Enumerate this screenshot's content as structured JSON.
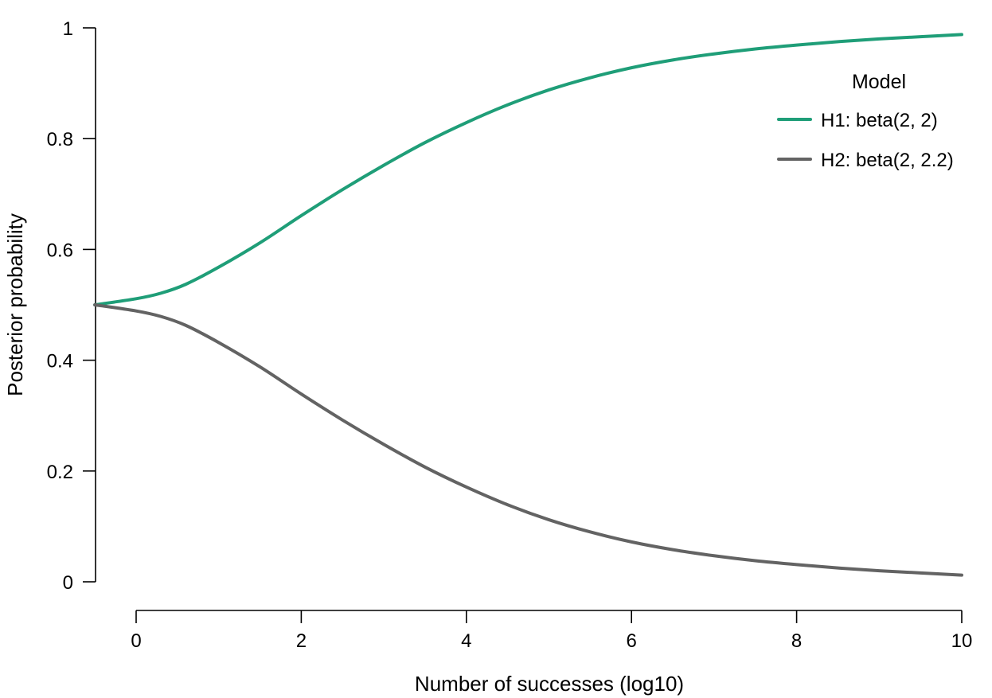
{
  "chart_data": {
    "type": "line",
    "title": "",
    "xlabel": "Number of successes (log10)",
    "ylabel": "Posterior probability",
    "xlim": [
      0,
      10
    ],
    "ylim": [
      0,
      1
    ],
    "x_ticks": [
      0,
      2,
      4,
      6,
      8,
      10
    ],
    "x_tick_labels": [
      "0",
      "2",
      "4",
      "6",
      "8",
      "10"
    ],
    "y_ticks": [
      0,
      0.2,
      0.4,
      0.6,
      0.8,
      1
    ],
    "y_tick_labels": [
      "0",
      "0.2",
      "0.4",
      "0.6",
      "0.8",
      "1"
    ],
    "grid": false,
    "legend": {
      "title": "Model",
      "placement": "top-right"
    },
    "x": [
      -0.5,
      0,
      0.3,
      0.6,
      1,
      1.5,
      2,
      2.5,
      3,
      3.5,
      4,
      4.5,
      5,
      5.5,
      6,
      6.5,
      7,
      7.5,
      8,
      8.5,
      9,
      9.5,
      10
    ],
    "series": [
      {
        "name": "H1: beta(2, 2)",
        "color": "#1f9e78",
        "values": [
          0.5,
          0.511,
          0.521,
          0.537,
          0.568,
          0.612,
          0.661,
          0.708,
          0.752,
          0.793,
          0.829,
          0.861,
          0.888,
          0.91,
          0.928,
          0.942,
          0.953,
          0.962,
          0.969,
          0.975,
          0.98,
          0.984,
          0.988
        ]
      },
      {
        "name": "H2: beta(2, 2.2)",
        "color": "#636363",
        "values": [
          0.5,
          0.489,
          0.479,
          0.463,
          0.432,
          0.388,
          0.339,
          0.292,
          0.248,
          0.207,
          0.171,
          0.139,
          0.112,
          0.09,
          0.072,
          0.058,
          0.047,
          0.038,
          0.031,
          0.025,
          0.02,
          0.016,
          0.012
        ]
      }
    ]
  }
}
